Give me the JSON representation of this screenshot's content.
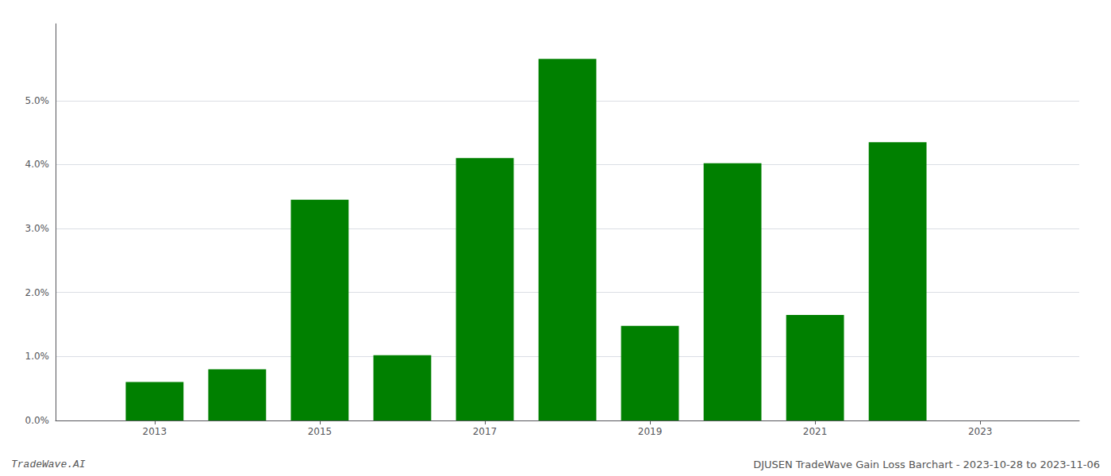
{
  "chart_data": {
    "type": "bar",
    "x": [
      2013,
      2014,
      2015,
      2016,
      2017,
      2018,
      2019,
      2020,
      2021,
      2022
    ],
    "values": [
      0.006,
      0.008,
      0.0345,
      0.0102,
      0.041,
      0.0565,
      0.0148,
      0.0402,
      0.0165,
      0.0435
    ],
    "color": "#008000",
    "xlim": [
      2011.8,
      2024.2
    ],
    "xticks": [
      2013,
      2015,
      2017,
      2019,
      2021,
      2023
    ],
    "ylim": [
      0,
      0.062
    ],
    "yticks": [
      {
        "value": 0.0,
        "label": "0.0%"
      },
      {
        "value": 0.01,
        "label": "1.0%"
      },
      {
        "value": 0.02,
        "label": "2.0%"
      },
      {
        "value": 0.03,
        "label": "3.0%"
      },
      {
        "value": 0.04,
        "label": "4.0%"
      },
      {
        "value": 0.05,
        "label": "5.0%"
      }
    ],
    "grid": true,
    "annotations": [
      "TradeWave.AI",
      "DJUSEN TradeWave Gain Loss Barchart - 2023-10-28 to 2023-11-06"
    ]
  }
}
